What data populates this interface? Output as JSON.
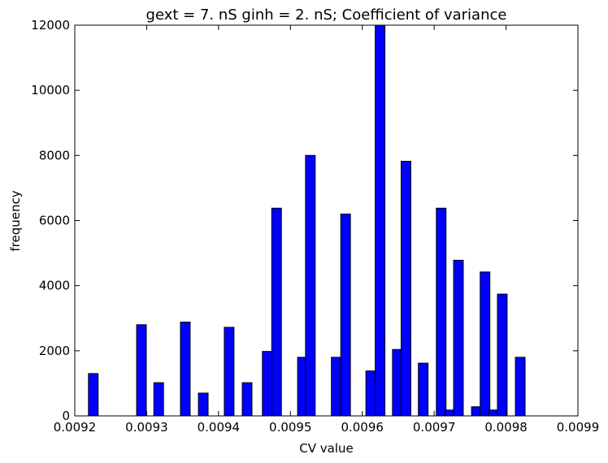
{
  "chart_data": {
    "type": "bar",
    "title": "gext = 7. nS ginh = 2. nS; Coefficient of variance",
    "xlabel": "CV value",
    "ylabel": "frequency",
    "xlim": [
      0.0092,
      0.0099
    ],
    "ylim": [
      0,
      12000
    ],
    "bar_width": 1.35e-05,
    "x_ticks": [
      "0.0092",
      "0.0093",
      "0.0094",
      "0.0095",
      "0.0096",
      "0.0097",
      "0.0098",
      "0.0099"
    ],
    "x_tick_values": [
      0.0092,
      0.0093,
      0.0094,
      0.0095,
      0.0096,
      0.0097,
      0.0098,
      0.0099
    ],
    "y_ticks": [
      "0",
      "2000",
      "4000",
      "6000",
      "8000",
      "10000",
      "12000"
    ],
    "y_tick_values": [
      0,
      2000,
      4000,
      6000,
      8000,
      10000,
      12000
    ],
    "grid": false,
    "bar_color": "#0000ff",
    "bars": [
      {
        "x": 0.009219,
        "value": 1300
      },
      {
        "x": 0.009286,
        "value": 2800
      },
      {
        "x": 0.00931,
        "value": 1020
      },
      {
        "x": 0.009347,
        "value": 2880
      },
      {
        "x": 0.009372,
        "value": 700
      },
      {
        "x": 0.009408,
        "value": 2720
      },
      {
        "x": 0.009433,
        "value": 1020
      },
      {
        "x": 0.009461,
        "value": 1980
      },
      {
        "x": 0.009474,
        "value": 6380
      },
      {
        "x": 0.00951,
        "value": 1800
      },
      {
        "x": 0.009521,
        "value": 8000
      },
      {
        "x": 0.009557,
        "value": 1800
      },
      {
        "x": 0.00957,
        "value": 6200
      },
      {
        "x": 0.009605,
        "value": 1380
      },
      {
        "x": 0.009618,
        "value": 12000
      },
      {
        "x": 0.009642,
        "value": 2040
      },
      {
        "x": 0.009654,
        "value": 7820
      },
      {
        "x": 0.009678,
        "value": 1620
      },
      {
        "x": 0.009703,
        "value": 6380
      },
      {
        "x": 0.009715,
        "value": 180
      },
      {
        "x": 0.009727,
        "value": 4780
      },
      {
        "x": 0.009752,
        "value": 280
      },
      {
        "x": 0.009764,
        "value": 4420
      },
      {
        "x": 0.009776,
        "value": 180
      },
      {
        "x": 0.009788,
        "value": 3740
      },
      {
        "x": 0.009813,
        "value": 1800
      }
    ]
  }
}
